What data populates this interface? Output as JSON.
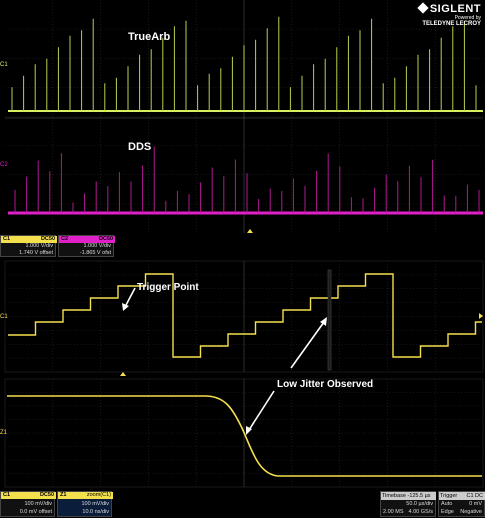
{
  "brand": {
    "name": "SIGLENT",
    "powered_by": "Powered by",
    "partner": "TELEDYNE LECROY"
  },
  "top_panel": {
    "annotations": {
      "truearb": "TrueArb",
      "dds": "DDS"
    },
    "channel_markers": {
      "c1": "C1",
      "c2": "C2"
    },
    "colors": {
      "c1": "#e8f06a",
      "c2": "#e020c8",
      "grid": "#2a2a2a"
    }
  },
  "top_readouts": {
    "c1": {
      "label": "C1",
      "coupling": "DC50",
      "vdiv": "1.000 V/div",
      "offset": "1.740 V offset",
      "color": "#f4e04c"
    },
    "c2": {
      "label": "C2",
      "coupling": "DC50",
      "vdiv": "1.000 V/div",
      "offset": "-1.865 V ofst",
      "color": "#e020c8"
    }
  },
  "middle_panel": {
    "annotation": "Trigger Point",
    "channel_marker": "C1",
    "trace_color": "#f4e04c"
  },
  "bottom_panel": {
    "annotation": "Low Jitter Observed",
    "channel_marker": "Z1",
    "trace_color": "#f4e04c"
  },
  "bottom_readouts": {
    "c1": {
      "label": "C1",
      "coupling": "DC50",
      "vdiv": "100 mV/div",
      "offset": "0.0 mV offset"
    },
    "z1": {
      "label": "Z1",
      "source": "zoom(C1)",
      "vdiv": "100 mV/div",
      "tdiv": "10.0 ns/div"
    },
    "timebase": {
      "label": "Timebase",
      "value": "-125.5 µs",
      "tdiv": "50.0 µs/div",
      "samples": "2.00 MS",
      "rate": "4.00 GS/s"
    },
    "trigger": {
      "label": "Trigger",
      "source": "C1",
      "coupling": "DC",
      "mode": "Auto",
      "level": "0 mV",
      "type": "Edge",
      "slope": "Negative"
    }
  }
}
